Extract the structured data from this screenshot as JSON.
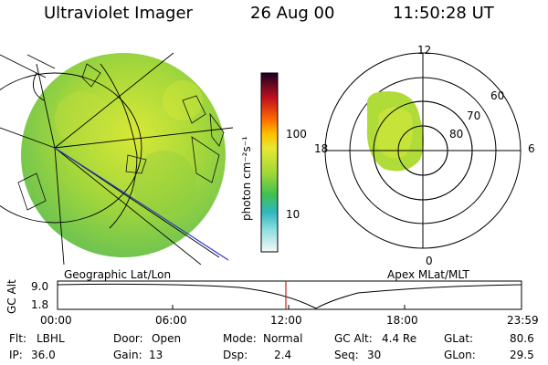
{
  "header": {
    "title": "Ultraviolet Imager",
    "date": "26 Aug 00",
    "time": "11:50:28 UT"
  },
  "colorbar": {
    "unit_label": "photon cm⁻²s⁻¹",
    "tick_100": "100",
    "tick_10": "10"
  },
  "polar": {
    "hour_12": "12",
    "hour_18": "18",
    "hour_6": "6",
    "hour_0": "0",
    "lat_60": "60",
    "lat_70": "70",
    "lat_80": "80"
  },
  "panel_labels": {
    "left": "Geographic Lat/Lon",
    "right": "Apex MLat/MLT"
  },
  "altitude_plot": {
    "ylabel": "GC Alt",
    "y_max": "9.0",
    "y_min": "1.8",
    "x_ticks": [
      "00:00",
      "06:00",
      "12:00",
      "18:00",
      "23:59"
    ]
  },
  "info": {
    "flt_label": "Flt:",
    "flt_value": "LBHL",
    "ip_label": "IP:",
    "ip_value": "36.0",
    "door_label": "Door:",
    "door_value": "Open",
    "gain_label": "Gain:",
    "gain_value": "13",
    "mode_label": "Mode:",
    "mode_value": "Normal",
    "dsp_label": "Dsp:",
    "dsp_value": "2.4",
    "gcalt_label": "GC Alt:",
    "gcalt_value": "4.4 Re",
    "seq_label": "Seq:",
    "seq_value": "30",
    "glat_label": "GLat:",
    "glat_value": "80.6",
    "glon_label": "GLon:",
    "glon_value": "29.5"
  }
}
